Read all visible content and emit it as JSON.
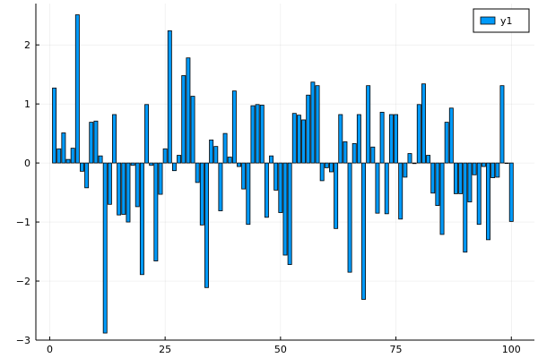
{
  "chart_data": {
    "type": "bar",
    "x": [
      1,
      2,
      3,
      4,
      5,
      6,
      7,
      8,
      9,
      10,
      11,
      12,
      13,
      14,
      15,
      16,
      17,
      18,
      19,
      20,
      21,
      22,
      23,
      24,
      25,
      26,
      27,
      28,
      29,
      30,
      31,
      32,
      33,
      34,
      35,
      36,
      37,
      38,
      39,
      40,
      41,
      42,
      43,
      44,
      45,
      46,
      47,
      48,
      49,
      50,
      51,
      52,
      53,
      54,
      55,
      56,
      57,
      58,
      59,
      60,
      61,
      62,
      63,
      64,
      65,
      66,
      67,
      68,
      69,
      70,
      71,
      72,
      73,
      74,
      75,
      76,
      77,
      78,
      79,
      80,
      81,
      82,
      83,
      84,
      85,
      86,
      87,
      88,
      89,
      90,
      91,
      92,
      93,
      94,
      95,
      96,
      97,
      98,
      99,
      100
    ],
    "series": [
      {
        "name": "y1",
        "color": "#009af9",
        "values": [
          1.27,
          0.24,
          0.51,
          0.06,
          0.25,
          2.51,
          -0.14,
          -0.42,
          0.69,
          0.71,
          0.12,
          -2.88,
          -0.7,
          0.82,
          -0.88,
          -0.87,
          -1.0,
          -0.04,
          -0.74,
          -1.89,
          0.99,
          -0.04,
          -1.66,
          -0.53,
          0.24,
          2.24,
          -0.13,
          0.13,
          1.48,
          1.78,
          1.13,
          -0.33,
          -1.05,
          -2.11,
          0.39,
          0.28,
          -0.81,
          0.5,
          0.1,
          1.22,
          -0.06,
          -0.44,
          -1.04,
          0.97,
          0.99,
          0.98,
          -0.92,
          0.12,
          -0.46,
          -0.84,
          -1.56,
          -1.72,
          0.84,
          0.81,
          0.73,
          1.15,
          1.37,
          1.31,
          -0.3,
          -0.08,
          -0.15,
          -1.11,
          0.82,
          0.36,
          -1.85,
          0.33,
          0.82,
          -2.31,
          1.31,
          0.27,
          -0.85,
          0.86,
          -0.86,
          0.82,
          0.82,
          -0.95,
          -0.24,
          0.16,
          -0.01,
          0.99,
          1.34,
          0.13,
          -0.51,
          -0.72,
          -1.21,
          0.69,
          0.93,
          -0.52,
          -0.52,
          -1.51,
          -0.66,
          -0.2,
          -1.04,
          -0.06,
          -1.3,
          -0.25,
          -0.24,
          1.31,
          0,
          -0.99
        ]
      }
    ],
    "xlim": [
      -3,
      105
    ],
    "ylim": [
      -3.0,
      2.7
    ],
    "xticks": [
      0,
      25,
      50,
      75,
      100
    ],
    "yticks": [
      -3,
      -2,
      -1,
      0,
      1,
      2
    ],
    "xtick_labels": [
      "0",
      "25",
      "50",
      "75",
      "100"
    ],
    "ytick_labels": [
      "−3",
      "−2",
      "−1",
      "0",
      "1",
      "2"
    ],
    "grid": true,
    "legend_position": "top-right",
    "title": "",
    "xlabel": "",
    "ylabel": ""
  }
}
